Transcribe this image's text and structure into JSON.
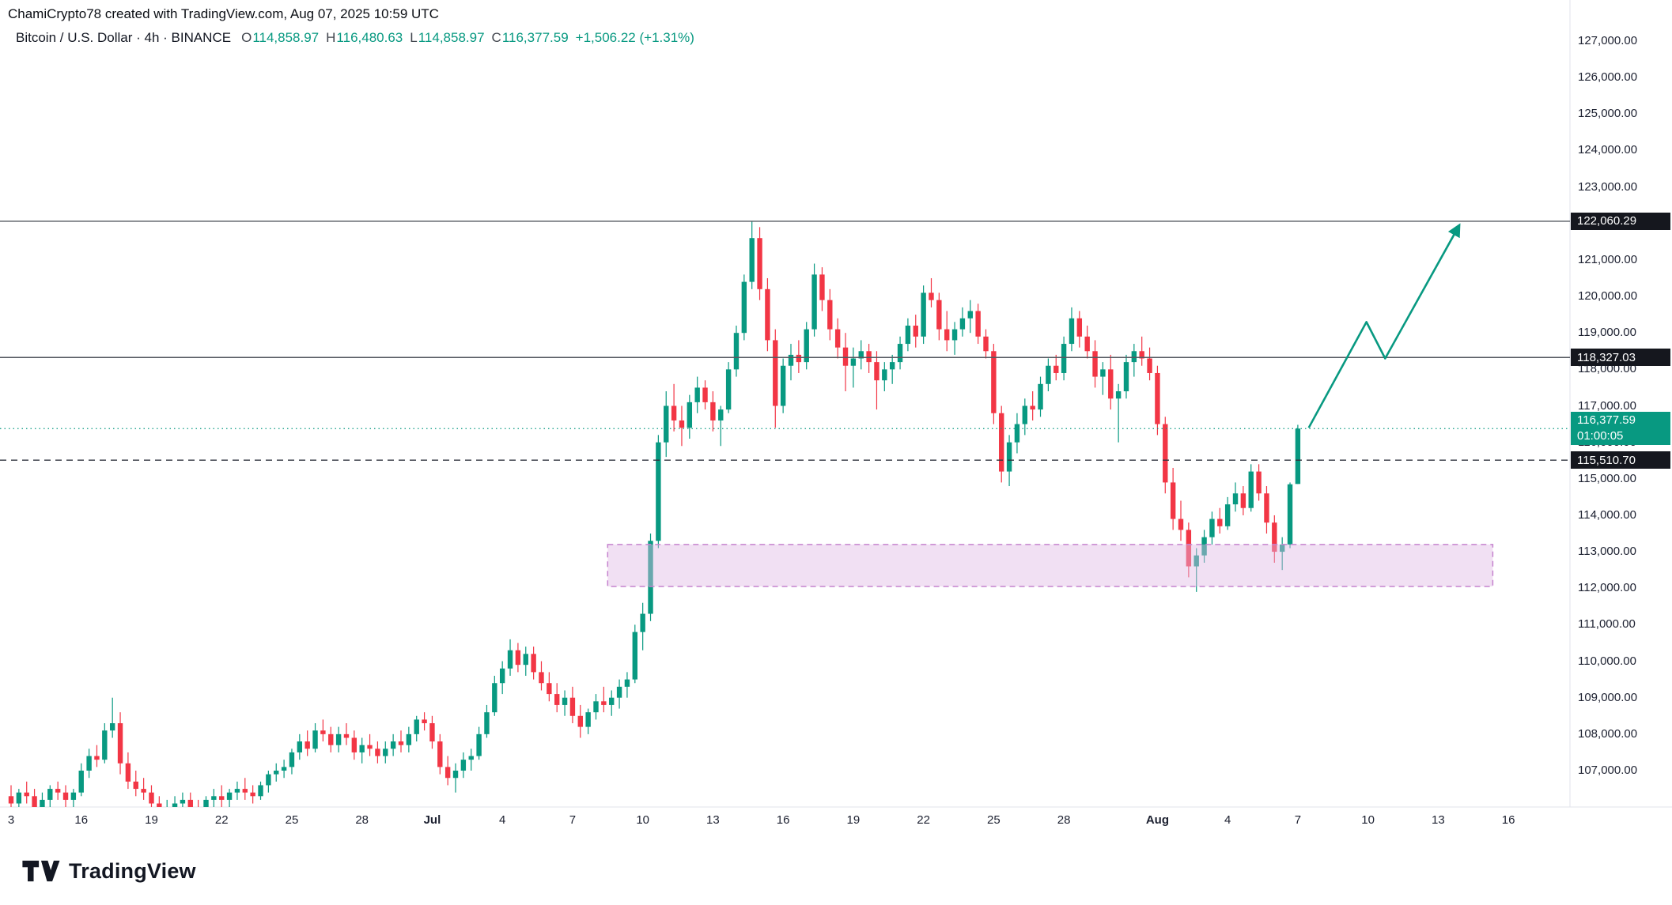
{
  "attribution": "ChamiCrypto78 created with TradingView.com, Aug 07, 2025 10:59 UTC",
  "legend": {
    "symbol_text": "Bitcoin / U.S. Dollar · 4h · BINANCE",
    "o_label": "O",
    "o_value": "114,858.97",
    "h_label": "H",
    "h_value": "116,480.63",
    "l_label": "L",
    "l_value": "114,858.97",
    "c_label": "C",
    "c_value": "116,377.59",
    "change": "+1,506.22 (+1.31%)"
  },
  "logo_text": "TradingView",
  "colors": {
    "up": "#089981",
    "down": "#f23645",
    "line_gray": "#555961",
    "dashed_black": "#2e323c",
    "current_teal": "#089981",
    "zone_fill": "rgba(224,187,228,0.45)",
    "zone_border": "#c583ce",
    "badge_dark": "#15171e",
    "axis_separator": "#e0e3eb"
  },
  "chart_data": {
    "type": "candlestick",
    "title": "Bitcoin / U.S. Dollar · 4h · BINANCE",
    "ylim": [
      107000,
      127000
    ],
    "x_range_labels": [
      "Jun 13",
      "Aug 16"
    ],
    "grid": false,
    "price_axis_labels": [
      "127,000.00",
      "126,000.00",
      "125,000.00",
      "124,000.00",
      "123,000.00",
      "122,000.00",
      "121,000.00",
      "120,000.00",
      "119,000.00",
      "118,000.00",
      "117,000.00",
      "116,000.00",
      "115,000.00",
      "114,000.00",
      "113,000.00",
      "112,000.00",
      "111,000.00",
      "110,000.00",
      "109,000.00",
      "108,000.00",
      "107,000.00"
    ],
    "time_axis_labels": [
      {
        "t": "3",
        "i": 0
      },
      {
        "t": "16",
        "i": 9
      },
      {
        "t": "19",
        "i": 18
      },
      {
        "t": "22",
        "i": 27
      },
      {
        "t": "25",
        "i": 36
      },
      {
        "t": "28",
        "i": 45
      },
      {
        "t": "Jul",
        "i": 54,
        "b": true
      },
      {
        "t": "4",
        "i": 63
      },
      {
        "t": "7",
        "i": 72
      },
      {
        "t": "10",
        "i": 81
      },
      {
        "t": "13",
        "i": 90
      },
      {
        "t": "16",
        "i": 99
      },
      {
        "t": "19",
        "i": 108
      },
      {
        "t": "22",
        "i": 117
      },
      {
        "t": "25",
        "i": 126
      },
      {
        "t": "28",
        "i": 135
      },
      {
        "t": "Aug",
        "i": 147,
        "b": true
      },
      {
        "t": "4",
        "i": 156
      },
      {
        "t": "7",
        "i": 165
      },
      {
        "t": "10",
        "i": 174
      },
      {
        "t": "13",
        "i": 183
      },
      {
        "t": "16",
        "i": 192
      }
    ],
    "price_lines": [
      {
        "label": "122,060.29",
        "price": 122060.29,
        "style": "solid"
      },
      {
        "label": "118,327.03",
        "price": 118327.03,
        "style": "solid"
      },
      {
        "label": "115,510.70",
        "price": 115510.7,
        "style": "dashed"
      }
    ],
    "current_price": {
      "label": "116,377.59",
      "countdown": "01:00:05",
      "price": 116377.59,
      "style": "dotted"
    },
    "zone": {
      "start_idx": 76.5,
      "end_idx": 190,
      "top_price": 113200,
      "bottom_price": 112050
    },
    "projection": {
      "points": [
        [
          166.4,
          116400
        ],
        [
          173.8,
          119300
        ],
        [
          176.2,
          118300
        ],
        [
          185.7,
          121950
        ]
      ]
    },
    "candles": [
      [
        106300,
        106600,
        105900,
        106100
      ],
      [
        106100,
        106500,
        105800,
        106400
      ],
      [
        106400,
        106700,
        106100,
        106300
      ],
      [
        106300,
        106500,
        105900,
        106000
      ],
      [
        106000,
        106400,
        105800,
        106200
      ],
      [
        106200,
        106600,
        106000,
        106500
      ],
      [
        106500,
        106700,
        106200,
        106400
      ],
      [
        106400,
        106600,
        106000,
        106200
      ],
      [
        106200,
        106500,
        106000,
        106400
      ],
      [
        106400,
        107200,
        106300,
        107000
      ],
      [
        107000,
        107600,
        106800,
        107400
      ],
      [
        107400,
        107700,
        107100,
        107300
      ],
      [
        107300,
        108300,
        107200,
        108100
      ],
      [
        108100,
        109000,
        107900,
        108300
      ],
      [
        108300,
        108600,
        106900,
        107200
      ],
      [
        107200,
        107500,
        106500,
        106700
      ],
      [
        106700,
        107000,
        106300,
        106500
      ],
      [
        106500,
        106800,
        106200,
        106400
      ],
      [
        106400,
        106600,
        105900,
        106100
      ],
      [
        106100,
        106300,
        105700,
        105900
      ],
      [
        105900,
        106200,
        105700,
        106000
      ],
      [
        106000,
        106300,
        105800,
        106100
      ],
      [
        106100,
        106400,
        105900,
        106200
      ],
      [
        106200,
        106400,
        105900,
        106000
      ],
      [
        106000,
        106200,
        105700,
        105900
      ],
      [
        105900,
        106300,
        105800,
        106200
      ],
      [
        106200,
        106500,
        106000,
        106300
      ],
      [
        106300,
        106600,
        106000,
        106200
      ],
      [
        106200,
        106500,
        106000,
        106400
      ],
      [
        106400,
        106700,
        106200,
        106500
      ],
      [
        106500,
        106800,
        106200,
        106400
      ],
      [
        106400,
        106600,
        106100,
        106300
      ],
      [
        106300,
        106700,
        106200,
        106600
      ],
      [
        106600,
        107000,
        106400,
        106900
      ],
      [
        106900,
        107200,
        106700,
        107000
      ],
      [
        107000,
        107300,
        106800,
        107100
      ],
      [
        107100,
        107600,
        106900,
        107500
      ],
      [
        107500,
        108000,
        107300,
        107800
      ],
      [
        107800,
        108100,
        107400,
        107600
      ],
      [
        107600,
        108300,
        107500,
        108100
      ],
      [
        108100,
        108400,
        107800,
        108000
      ],
      [
        108000,
        108200,
        107500,
        107700
      ],
      [
        107700,
        108200,
        107500,
        108000
      ],
      [
        108000,
        108300,
        107700,
        107900
      ],
      [
        107900,
        108100,
        107300,
        107500
      ],
      [
        107500,
        107900,
        107200,
        107700
      ],
      [
        107700,
        108000,
        107400,
        107600
      ],
      [
        107600,
        107800,
        107200,
        107400
      ],
      [
        107400,
        107800,
        107200,
        107600
      ],
      [
        107600,
        108000,
        107400,
        107800
      ],
      [
        107800,
        108100,
        107500,
        107700
      ],
      [
        107700,
        108200,
        107500,
        108000
      ],
      [
        108000,
        108500,
        107800,
        108400
      ],
      [
        108400,
        108600,
        108100,
        108300
      ],
      [
        108300,
        108500,
        107600,
        107800
      ],
      [
        107800,
        108000,
        106900,
        107100
      ],
      [
        107100,
        107400,
        106600,
        106800
      ],
      [
        106800,
        107200,
        106400,
        107000
      ],
      [
        107000,
        107500,
        106800,
        107300
      ],
      [
        107300,
        107600,
        107000,
        107400
      ],
      [
        107400,
        108200,
        107300,
        108000
      ],
      [
        108000,
        108800,
        107900,
        108600
      ],
      [
        108600,
        109600,
        108500,
        109400
      ],
      [
        109400,
        110000,
        109100,
        109800
      ],
      [
        109800,
        110600,
        109600,
        110300
      ],
      [
        110300,
        110500,
        109700,
        109900
      ],
      [
        109900,
        110400,
        109600,
        110200
      ],
      [
        110200,
        110400,
        109500,
        109700
      ],
      [
        109700,
        110000,
        109200,
        109400
      ],
      [
        109400,
        109700,
        108900,
        109100
      ],
      [
        109100,
        109400,
        108600,
        108800
      ],
      [
        108800,
        109200,
        108500,
        109000
      ],
      [
        109000,
        109300,
        108300,
        108500
      ],
      [
        108500,
        108800,
        107900,
        108200
      ],
      [
        108200,
        108700,
        108000,
        108600
      ],
      [
        108600,
        109100,
        108400,
        108900
      ],
      [
        108900,
        109300,
        108600,
        108800
      ],
      [
        108800,
        109200,
        108500,
        109000
      ],
      [
        109000,
        109500,
        108700,
        109300
      ],
      [
        109300,
        109700,
        109000,
        109500
      ],
      [
        109500,
        111000,
        109400,
        110800
      ],
      [
        110800,
        111600,
        110300,
        111300
      ],
      [
        111300,
        113500,
        111100,
        113300
      ],
      [
        113300,
        116200,
        113100,
        116000
      ],
      [
        116000,
        117400,
        115600,
        117000
      ],
      [
        117000,
        117600,
        116300,
        116600
      ],
      [
        116600,
        117000,
        115900,
        116400
      ],
      [
        116400,
        117300,
        116100,
        117100
      ],
      [
        117100,
        117800,
        116800,
        117500
      ],
      [
        117500,
        117700,
        116900,
        117100
      ],
      [
        117100,
        117400,
        116300,
        116600
      ],
      [
        116600,
        117000,
        115900,
        116900
      ],
      [
        116900,
        118200,
        116800,
        118000
      ],
      [
        118000,
        119200,
        117800,
        119000
      ],
      [
        119000,
        120600,
        118800,
        120400
      ],
      [
        120400,
        122060,
        120200,
        121600
      ],
      [
        121600,
        121900,
        119900,
        120200
      ],
      [
        120200,
        120500,
        118500,
        118800
      ],
      [
        118800,
        119100,
        116400,
        117000
      ],
      [
        117000,
        118300,
        116800,
        118100
      ],
      [
        118100,
        118700,
        117700,
        118400
      ],
      [
        118400,
        118800,
        117900,
        118200
      ],
      [
        118200,
        119300,
        118000,
        119100
      ],
      [
        119100,
        120900,
        118900,
        120600
      ],
      [
        120600,
        120800,
        119600,
        119900
      ],
      [
        119900,
        120200,
        118800,
        119100
      ],
      [
        119100,
        119400,
        118300,
        118600
      ],
      [
        118600,
        119000,
        117400,
        118100
      ],
      [
        118100,
        118600,
        117500,
        118300
      ],
      [
        118300,
        118800,
        118000,
        118500
      ],
      [
        118500,
        118700,
        117900,
        118200
      ],
      [
        118200,
        118500,
        116900,
        117700
      ],
      [
        117700,
        118200,
        117400,
        118000
      ],
      [
        118000,
        118400,
        117600,
        118200
      ],
      [
        118200,
        118900,
        118000,
        118700
      ],
      [
        118700,
        119400,
        118500,
        119200
      ],
      [
        119200,
        119500,
        118600,
        118900
      ],
      [
        118900,
        120300,
        118700,
        120100
      ],
      [
        120100,
        120500,
        119700,
        119900
      ],
      [
        119900,
        120100,
        118800,
        119100
      ],
      [
        119100,
        119600,
        118500,
        118800
      ],
      [
        118800,
        119300,
        118400,
        119100
      ],
      [
        119100,
        119700,
        118900,
        119400
      ],
      [
        119400,
        119900,
        119000,
        119600
      ],
      [
        119600,
        119800,
        118700,
        118900
      ],
      [
        118900,
        119100,
        118300,
        118500
      ],
      [
        118500,
        118700,
        116500,
        116800
      ],
      [
        116800,
        117000,
        114900,
        115200
      ],
      [
        115200,
        116200,
        114800,
        116000
      ],
      [
        116000,
        116800,
        115700,
        116500
      ],
      [
        116500,
        117200,
        116200,
        117000
      ],
      [
        117000,
        117400,
        116600,
        116900
      ],
      [
        116900,
        117800,
        116700,
        117600
      ],
      [
        117600,
        118300,
        117400,
        118100
      ],
      [
        118100,
        118400,
        117700,
        117900
      ],
      [
        117900,
        118900,
        117700,
        118700
      ],
      [
        118700,
        119700,
        118500,
        119400
      ],
      [
        119400,
        119600,
        118600,
        118900
      ],
      [
        118900,
        119200,
        118300,
        118500
      ],
      [
        118500,
        118800,
        117500,
        117800
      ],
      [
        117800,
        118200,
        117300,
        118000
      ],
      [
        118000,
        118400,
        116900,
        117200
      ],
      [
        117200,
        117600,
        116000,
        117400
      ],
      [
        117400,
        118400,
        117200,
        118200
      ],
      [
        118200,
        118700,
        117800,
        118500
      ],
      [
        118500,
        118900,
        118100,
        118300
      ],
      [
        118300,
        118600,
        117700,
        117900
      ],
      [
        117900,
        118100,
        116200,
        116500
      ],
      [
        116500,
        116700,
        114600,
        114900
      ],
      [
        114900,
        115300,
        113600,
        113900
      ],
      [
        113900,
        114400,
        113300,
        113600
      ],
      [
        113600,
        113800,
        112300,
        112600
      ],
      [
        112600,
        113100,
        111900,
        112900
      ],
      [
        112900,
        113600,
        112700,
        113400
      ],
      [
        113400,
        114100,
        113200,
        113900
      ],
      [
        113900,
        114200,
        113500,
        113700
      ],
      [
        113700,
        114500,
        113600,
        114300
      ],
      [
        114300,
        114900,
        114100,
        114600
      ],
      [
        114600,
        114800,
        114000,
        114200
      ],
      [
        114200,
        115400,
        114100,
        115200
      ],
      [
        115200,
        115400,
        114400,
        114600
      ],
      [
        114600,
        114800,
        113500,
        113800
      ],
      [
        113800,
        114000,
        112700,
        113000
      ],
      [
        113000,
        113400,
        112500,
        113200
      ],
      [
        113200,
        114900,
        113100,
        114850
      ],
      [
        114858.97,
        116480.63,
        114858.97,
        116377.59
      ]
    ]
  }
}
